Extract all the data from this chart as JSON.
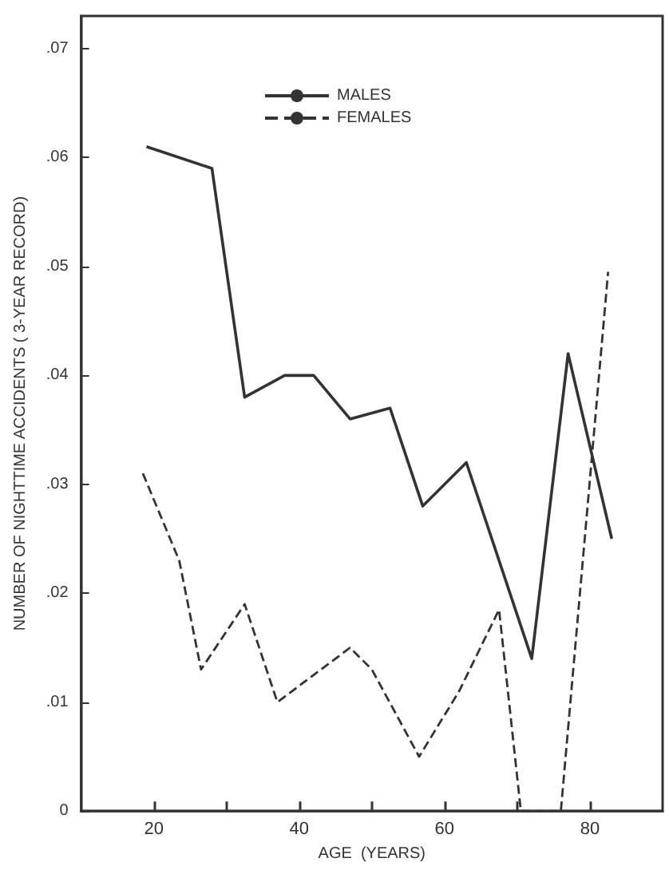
{
  "chart_data": {
    "type": "line",
    "xlabel": "AGE  (YEARS)",
    "ylabel": "NUMBER OF NIGHTTIME ACCIDENTS ( 3-YEAR RECORD)",
    "series": [
      {
        "name": "MALES",
        "color": "#333333",
        "line_style": "solid",
        "x": [
          19,
          28,
          32.5,
          38,
          42,
          47,
          52.5,
          57,
          63,
          72,
          77,
          83
        ],
        "values": [
          0.061,
          0.059,
          0.038,
          0.04,
          0.04,
          0.036,
          0.037,
          0.028,
          0.032,
          0.014,
          0.042,
          0.025
        ]
      },
      {
        "name": "FEMALES",
        "color": "#333333",
        "line_style": "dashed",
        "x": [
          18.5,
          23.5,
          26.5,
          32.5,
          37,
          41,
          47,
          50,
          56.5,
          62,
          67.5,
          70.5,
          76,
          82.5
        ],
        "values": [
          0.031,
          0.023,
          0.013,
          0.019,
          0.01,
          0.012,
          0.015,
          0.013,
          0.005,
          0.011,
          0.0185,
          0,
          0,
          0.0495
        ]
      }
    ],
    "xlim": [
      10,
      90
    ],
    "xticks": [
      20,
      {
        "value": 30,
        "label": null
      },
      40,
      {
        "value": 50,
        "label": null
      },
      60,
      {
        "value": 70,
        "label": null
      },
      80
    ],
    "ylim": [
      0,
      0.073
    ],
    "yticks": [
      0,
      {
        "value": 0.01,
        "label": ".01"
      },
      {
        "value": 0.02,
        "label": ".02"
      },
      {
        "value": 0.03,
        "label": ".03"
      },
      {
        "value": 0.04,
        "label": ".04"
      },
      {
        "value": 0.05,
        "label": ".05"
      },
      {
        "value": 0.06,
        "label": ".06"
      },
      {
        "value": 0.07,
        "label": ".07"
      }
    ],
    "legend": "top",
    "grid": false,
    "marker": "none"
  }
}
